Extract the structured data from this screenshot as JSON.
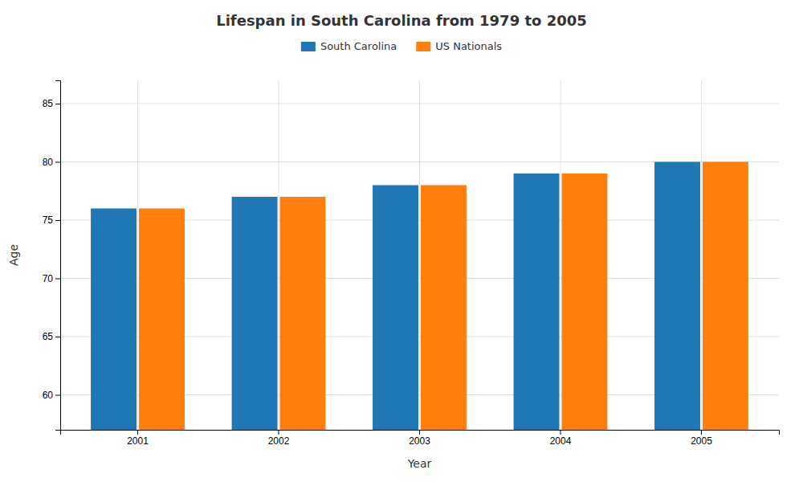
{
  "chart_data": {
    "type": "bar",
    "title": "Lifespan in South Carolina from 1979 to 2005",
    "xlabel": "Year",
    "ylabel": "Age",
    "categories": [
      "2001",
      "2002",
      "2003",
      "2004",
      "2005"
    ],
    "series": [
      {
        "name": "South Carolina",
        "values": [
          76,
          77,
          78,
          79,
          80
        ]
      },
      {
        "name": "US Nationals",
        "values": [
          76,
          77,
          78,
          79,
          80
        ]
      }
    ],
    "ylim": [
      57,
      87
    ],
    "yticks": [
      60,
      65,
      70,
      75,
      80,
      85
    ],
    "grid": true,
    "legend": "top"
  }
}
